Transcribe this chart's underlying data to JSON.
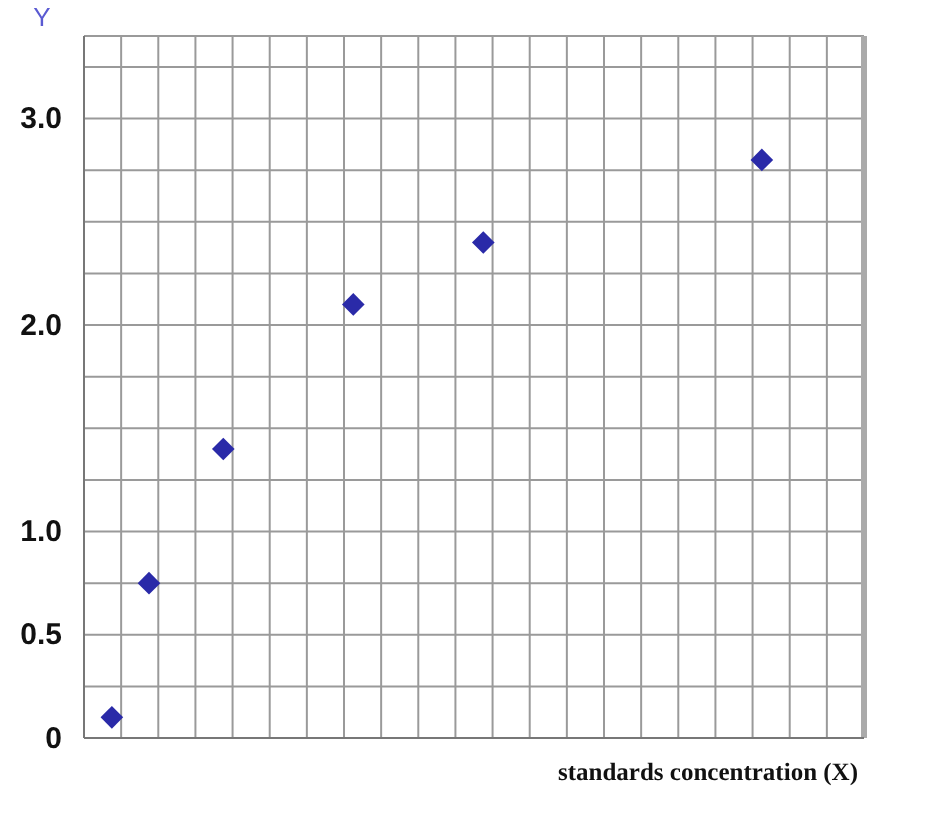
{
  "chart_data": {
    "type": "scatter",
    "xlabel": "standards concentration (X)",
    "ylabel": "Y",
    "categories": [
      null,
      null,
      null,
      null,
      null,
      null,
      null,
      null,
      null,
      null,
      null,
      null,
      null,
      null,
      null,
      null,
      null,
      null,
      null,
      null,
      null,
      null,
      null,
      null,
      null,
      null,
      null,
      null,
      null,
      null,
      null,
      null,
      null,
      null,
      null,
      null,
      null,
      null,
      null,
      null,
      null,
      null
    ],
    "values": [
      null,
      0.1,
      null,
      0.75,
      null,
      null,
      null,
      1.4,
      null,
      null,
      null,
      null,
      null,
      null,
      2.1,
      null,
      null,
      null,
      null,
      null,
      null,
      2.4,
      null,
      null,
      null,
      null,
      null,
      null,
      null,
      null,
      null,
      null,
      null,
      null,
      null,
      null,
      2.8,
      null,
      null,
      null,
      null,
      null
    ],
    "color": "#2a2aa8",
    "marker": "diamond",
    "ylim": [
      0,
      3.4
    ],
    "yticks": [
      0,
      {
        "value": 0.25,
        "label": null
      },
      0.5,
      {
        "value": 0.75,
        "label": null
      },
      {
        "value": 1,
        "label": "1.0"
      },
      {
        "value": 1.25,
        "label": null
      },
      {
        "value": 1.5,
        "label": null
      },
      {
        "value": 1.75,
        "label": null
      },
      {
        "value": 2,
        "label": "2.0"
      },
      {
        "value": 2.25,
        "label": null
      },
      {
        "value": 2.5,
        "label": null
      },
      {
        "value": 2.75,
        "label": null
      },
      {
        "value": 3,
        "label": "3.0"
      },
      {
        "value": 3.25,
        "label": null
      }
    ],
    "grid": true,
    "tick_labels": "y"
  }
}
